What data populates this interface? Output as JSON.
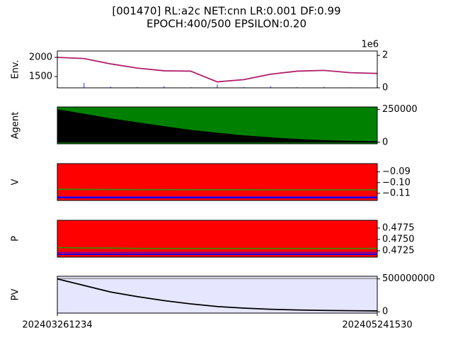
{
  "chart_data": [
    {
      "type": "line",
      "title": "[001470] RL:a2c NET:cnn LR:0.001 DF:0.99",
      "subtitle": "EPOCH:400/500 EPSILON:0.20",
      "ylabel": "Env.",
      "x": [
        0,
        1,
        2,
        3,
        4,
        5,
        6,
        7,
        8,
        9,
        10,
        11,
        12
      ],
      "xlim": [
        0,
        12
      ],
      "background": "#ffffff",
      "ylim": [
        1204,
        2167
      ],
      "yticks": [
        1500,
        2000
      ],
      "ytick_side": "left",
      "y2lim": [
        0,
        2.27
      ],
      "y2ticks": [
        0,
        2
      ],
      "y2_offset_label": "1e6",
      "series": [
        {
          "kind": "bar",
          "axis": "y2",
          "color": "#8c8cff",
          "values": [
            0.05,
            0.3,
            0.08,
            0.05,
            0.1,
            0.04,
            0.2,
            0.05,
            0.1,
            0.04,
            0.06,
            0.03,
            0.04
          ]
        },
        {
          "kind": "line",
          "color": "#b0206a",
          "values": [
            2000,
            1970,
            1830,
            1720,
            1650,
            1640,
            1360,
            1420,
            1560,
            1640,
            1660,
            1600,
            1580
          ]
        }
      ]
    },
    {
      "type": "area",
      "ylabel": "Agent",
      "x": [
        0,
        1,
        2,
        3,
        4,
        5,
        6,
        7,
        8,
        9,
        10,
        11,
        12
      ],
      "xlim": [
        0,
        12
      ],
      "background": "#008000",
      "ylim": [
        -12000,
        270000
      ],
      "yticks": [
        0,
        250000
      ],
      "ytick_side": "right",
      "series": [
        {
          "kind": "area",
          "color": "#000000",
          "values": [
            250000,
            215000,
            180000,
            150000,
            120000,
            92000,
            70000,
            50000,
            35000,
            22000,
            13000,
            8000,
            5000
          ]
        }
      ]
    },
    {
      "type": "line",
      "ylabel": "V",
      "x": [
        0,
        1,
        2,
        3,
        4,
        5,
        6,
        7,
        8,
        9,
        10,
        11,
        12
      ],
      "xlim": [
        0,
        12
      ],
      "background": "#ff0000",
      "ylim": [
        -0.1167,
        -0.0823
      ],
      "yticks": [
        {
          "value": -0.09,
          "label": "−0.09"
        },
        {
          "value": -0.1,
          "label": "−0.10"
        },
        {
          "value": -0.11,
          "label": "−0.11"
        }
      ],
      "ytick_side": "right",
      "series": [
        {
          "kind": "line",
          "color": "#3a8a00",
          "values": [
            -0.1062,
            -0.1064,
            -0.1065,
            -0.1066,
            -0.1066,
            -0.1067,
            -0.1067,
            -0.1067,
            -0.1068,
            -0.1068,
            -0.1068,
            -0.1068,
            -0.1068
          ]
        },
        {
          "kind": "line",
          "color": "#8000a0",
          "values": [
            -0.1133,
            -0.1133,
            -0.1133,
            -0.1133,
            -0.1133,
            -0.1133,
            -0.1133,
            -0.1133,
            -0.1133,
            -0.1133,
            -0.1133,
            -0.1133,
            -0.1133
          ]
        },
        {
          "kind": "line",
          "color": "#0000ff",
          "values": [
            -0.1141,
            -0.1141,
            -0.1141,
            -0.1141,
            -0.1141,
            -0.1141,
            -0.1141,
            -0.1141,
            -0.1141,
            -0.1141,
            -0.1141,
            -0.1141,
            -0.1141
          ]
        }
      ]
    },
    {
      "type": "line",
      "ylabel": "P",
      "x": [
        0,
        1,
        2,
        3,
        4,
        5,
        6,
        7,
        8,
        9,
        10,
        11,
        12
      ],
      "xlim": [
        0,
        12
      ],
      "background": "#ff0000",
      "ylim": [
        0.47109,
        0.47922
      ],
      "yticks": [
        {
          "value": 0.4725,
          "label": "0.4725"
        },
        {
          "value": 0.475,
          "label": "0.4750"
        },
        {
          "value": 0.4775,
          "label": "0.4775"
        }
      ],
      "ytick_side": "right",
      "series": [
        {
          "kind": "line",
          "color": "#3a8a00",
          "values": [
            0.4732,
            0.4731,
            0.4731,
            0.473,
            0.473,
            0.473,
            0.473,
            0.473,
            0.473,
            0.473,
            0.473,
            0.473,
            0.473
          ]
        },
        {
          "kind": "line",
          "color": "#8000a0",
          "values": [
            0.4721,
            0.4721,
            0.4721,
            0.4721,
            0.4721,
            0.4721,
            0.4721,
            0.4721,
            0.4721,
            0.4721,
            0.4721,
            0.4721,
            0.4721
          ]
        },
        {
          "kind": "line",
          "color": "#0000ff",
          "values": [
            0.4717,
            0.4717,
            0.4717,
            0.4717,
            0.4717,
            0.4717,
            0.4717,
            0.4717,
            0.4717,
            0.4717,
            0.4717,
            0.4717,
            0.4717
          ]
        }
      ]
    },
    {
      "type": "line",
      "ylabel": "PV",
      "x": [
        0,
        1,
        2,
        3,
        4,
        5,
        6,
        7,
        8,
        9,
        10,
        11,
        12
      ],
      "xlim": [
        0,
        12
      ],
      "background": "#e6e6ff",
      "ylim": [
        -20000000,
        540000000
      ],
      "yticks": [
        0,
        500000000
      ],
      "ytick_side": "right",
      "xticks": [
        {
          "value": 0,
          "label": "202403261234"
        },
        {
          "value": 12,
          "label": "202405241530"
        }
      ],
      "series": [
        {
          "kind": "line",
          "color": "#999999",
          "values": [
            505000000,
            505000000,
            505000000,
            505000000,
            505000000,
            505000000,
            505000000,
            505000000,
            505000000,
            505000000,
            505000000,
            505000000,
            505000000
          ]
        },
        {
          "kind": "line",
          "color": "#000000",
          "values": [
            500000000,
            400000000,
            300000000,
            230000000,
            170000000,
            120000000,
            80000000,
            55000000,
            38000000,
            27000000,
            20000000,
            16000000,
            13000000
          ]
        }
      ]
    }
  ]
}
